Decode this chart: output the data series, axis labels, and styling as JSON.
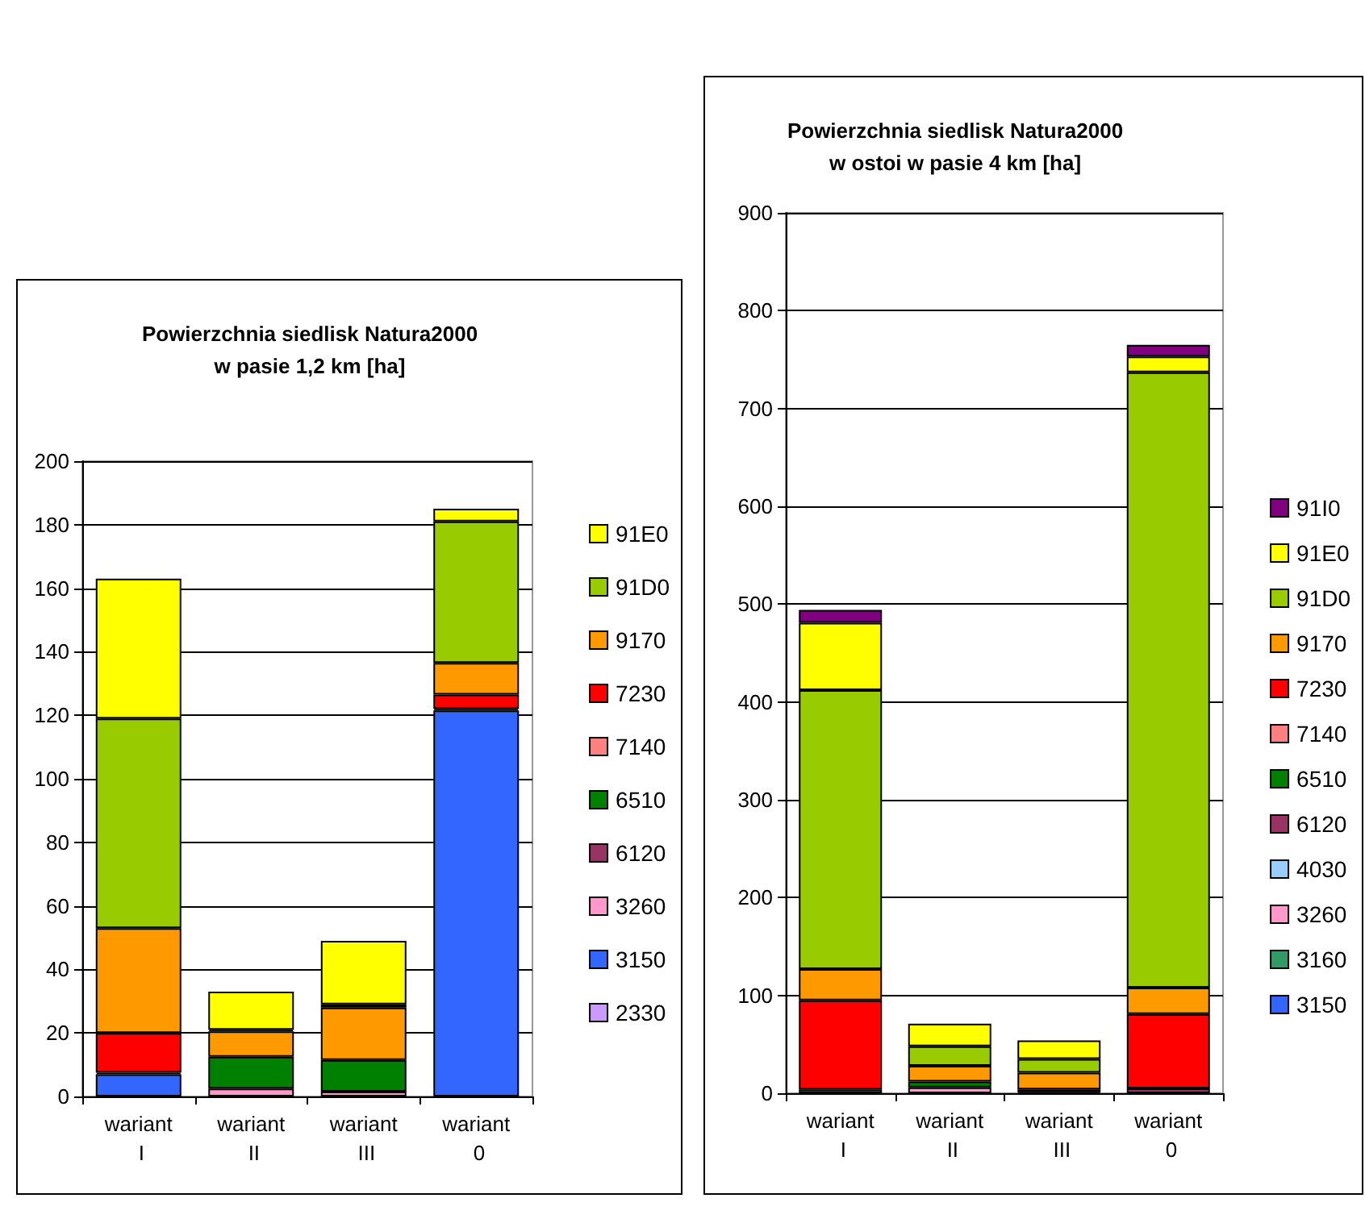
{
  "chart_data": [
    {
      "type": "bar",
      "title": "Powierzchnia siedlisk Natura2000\nw pasie 1,2 km [ha]",
      "categories": [
        "wariant I",
        "wariant II",
        "wariant III",
        "wariant 0"
      ],
      "stacked": true,
      "ylim": [
        0,
        200
      ],
      "yticks": [
        0,
        20,
        40,
        60,
        80,
        100,
        120,
        140,
        160,
        180,
        200
      ],
      "grid": "y",
      "legend": "right",
      "series": [
        {
          "name": "2330",
          "color": "#cc99ff",
          "values": [
            null,
            null,
            null,
            null
          ]
        },
        {
          "name": "3150",
          "color": "#3366ff",
          "values": [
            7,
            null,
            null,
            121.5
          ]
        },
        {
          "name": "3260",
          "color": "#ff99cc",
          "values": [
            null,
            2.5,
            1.5,
            null
          ]
        },
        {
          "name": "6120",
          "color": "#993366",
          "values": [
            0.5,
            null,
            null,
            0.5
          ]
        },
        {
          "name": "6510",
          "color": "#008000",
          "values": [
            null,
            10,
            10,
            null
          ]
        },
        {
          "name": "7140",
          "color": "#ff8080",
          "values": [
            null,
            null,
            null,
            null
          ]
        },
        {
          "name": "7230",
          "color": "#ff0000",
          "values": [
            12.5,
            null,
            null,
            4.5
          ]
        },
        {
          "name": "9170",
          "color": "#ff9900",
          "values": [
            33,
            8,
            16.5,
            10
          ]
        },
        {
          "name": "91D0",
          "color": "#99cc00",
          "values": [
            66,
            0.5,
            1,
            44.5
          ]
        },
        {
          "name": "91E0",
          "color": "#ffff00",
          "values": [
            44,
            12,
            20,
            4
          ]
        }
      ]
    },
    {
      "type": "bar",
      "title": "Powierzchnia siedlisk Natura2000\nw ostoi w pasie 4 km [ha]",
      "categories": [
        "wariant I",
        "wariant II",
        "wariant III",
        "wariant 0"
      ],
      "stacked": true,
      "ylim": [
        0,
        900
      ],
      "yticks": [
        0,
        100,
        200,
        300,
        400,
        500,
        600,
        700,
        800,
        900
      ],
      "grid": "y",
      "legend": "right",
      "series": [
        {
          "name": "3150",
          "color": "#3366ff",
          "values": [
            null,
            null,
            null,
            null
          ]
        },
        {
          "name": "3160",
          "color": "#339966",
          "values": [
            null,
            null,
            null,
            null
          ]
        },
        {
          "name": "3260",
          "color": "#ff99cc",
          "values": [
            null,
            6,
            null,
            null
          ]
        },
        {
          "name": "4030",
          "color": "#99ccff",
          "values": [
            null,
            null,
            null,
            null
          ]
        },
        {
          "name": "6120",
          "color": "#993366",
          "values": [
            4,
            null,
            1,
            5
          ]
        },
        {
          "name": "6510",
          "color": "#008000",
          "values": [
            null,
            6,
            3,
            null
          ]
        },
        {
          "name": "7140",
          "color": "#ff8080",
          "values": [
            null,
            null,
            null,
            null
          ]
        },
        {
          "name": "7230",
          "color": "#ff0000",
          "values": [
            91,
            null,
            null,
            76
          ]
        },
        {
          "name": "9170",
          "color": "#ff9900",
          "values": [
            32,
            16,
            17,
            27
          ]
        },
        {
          "name": "91D0",
          "color": "#99cc00",
          "values": [
            285,
            20,
            14,
            629
          ]
        },
        {
          "name": "91E0",
          "color": "#ffff00",
          "values": [
            69,
            23,
            19,
            16
          ]
        },
        {
          "name": "91I0",
          "color": "#800080",
          "values": [
            13,
            null,
            null,
            12
          ]
        }
      ]
    }
  ]
}
